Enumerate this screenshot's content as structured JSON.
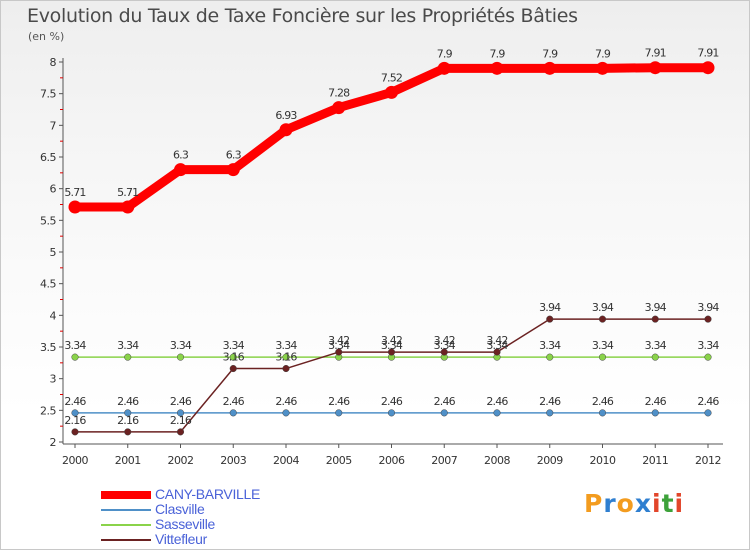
{
  "chart_data": {
    "type": "line",
    "title": "Evolution du Taux de Taxe Foncière sur les Propriétés Bâties",
    "unit_label": "(en %)",
    "x": [
      "2000",
      "2001",
      "2002",
      "2003",
      "2004",
      "2005",
      "2006",
      "2007",
      "2008",
      "2009",
      "2010",
      "2011",
      "2012"
    ],
    "ylim": [
      2,
      8
    ],
    "yticks": [
      "2",
      "2.5",
      "3",
      "3.5",
      "4",
      "4.5",
      "5",
      "5.5",
      "6",
      "6.5",
      "7",
      "7.5",
      "8"
    ],
    "grid": false,
    "series": [
      {
        "name": "CANY-BARVILLE",
        "color": "#ff0000",
        "values": [
          5.71,
          5.71,
          6.3,
          6.3,
          6.93,
          7.28,
          7.52,
          7.9,
          7.9,
          7.9,
          7.9,
          7.91,
          7.91
        ],
        "labels": [
          "5.71",
          "5.71",
          "6.3",
          "6.3",
          "6.93",
          "7.28",
          "7.52",
          "7.9",
          "7.9",
          "7.9",
          "7.9",
          "7.91",
          "7.91"
        ]
      },
      {
        "name": "Clasville",
        "color": "#4f90c8",
        "values": [
          2.46,
          2.46,
          2.46,
          2.46,
          2.46,
          2.46,
          2.46,
          2.46,
          2.46,
          2.46,
          2.46,
          2.46,
          2.46
        ],
        "labels": [
          "2.46",
          "2.46",
          "2.46",
          "2.46",
          "2.46",
          "2.46",
          "2.46",
          "2.46",
          "2.46",
          "2.46",
          "2.46",
          "2.46",
          "2.46"
        ]
      },
      {
        "name": "Sasseville",
        "color": "#8ad34a",
        "values": [
          3.34,
          3.34,
          3.34,
          3.34,
          3.34,
          3.34,
          3.34,
          3.34,
          3.34,
          3.34,
          3.34,
          3.34,
          3.34
        ],
        "labels": [
          "3.34",
          "3.34",
          "3.34",
          "3.34",
          "3.34",
          "3.34",
          "3.34",
          "3.34",
          "3.34",
          "3.34",
          "3.34",
          "3.34",
          "3.34"
        ]
      },
      {
        "name": "Vittefleur",
        "color": "#6b2222",
        "values": [
          2.16,
          2.16,
          2.16,
          3.16,
          3.16,
          3.42,
          3.42,
          3.42,
          3.42,
          3.94,
          3.94,
          3.94,
          3.94
        ],
        "labels": [
          "2.16",
          "2.16",
          "2.16",
          "3.16",
          "3.16",
          "3.42",
          "3.42",
          "3.42",
          "3.42",
          "3.94",
          "3.94",
          "3.94",
          "3.94"
        ]
      }
    ]
  },
  "logo": {
    "letters": [
      "P",
      "r",
      "o",
      "x",
      "i",
      "t",
      "i"
    ],
    "colors": [
      "#f39c1f",
      "#2f7fd0",
      "#f39c1f",
      "#2f7fd0",
      "#e2452a",
      "#3da23a",
      "#e2452a"
    ]
  }
}
